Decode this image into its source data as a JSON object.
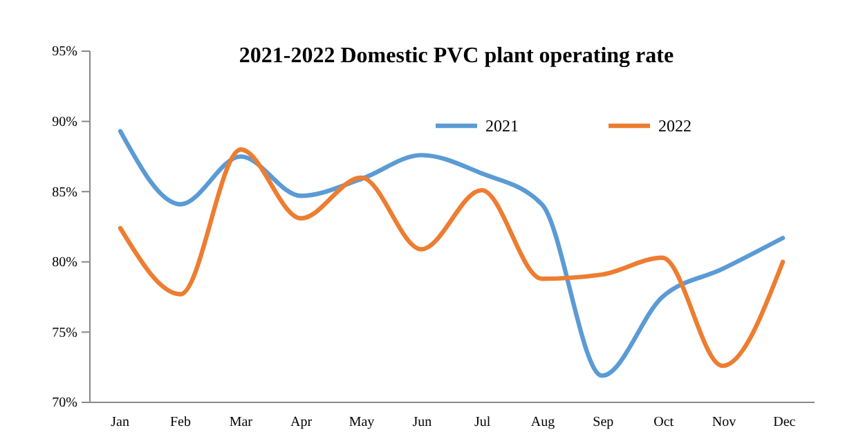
{
  "chart_data": {
    "type": "line",
    "title": "2021-2022 Domestic PVC plant operating rate",
    "categories": [
      "Jan",
      "Feb",
      "Mar",
      "Apr",
      "May",
      "Jun",
      "Jul",
      "Aug",
      "Sep",
      "Oct",
      "Nov",
      "Dec"
    ],
    "series": [
      {
        "name": "2021",
        "color": "#5b9bd5",
        "values": [
          89.3,
          84.1,
          87.5,
          84.7,
          85.9,
          87.6,
          86.3,
          84.1,
          71.9,
          77.5,
          79.5,
          81.7
        ]
      },
      {
        "name": "2022",
        "color": "#ed7d31",
        "values": [
          82.4,
          77.7,
          88.0,
          83.1,
          86.0,
          80.9,
          85.1,
          78.8,
          79.1,
          80.3,
          72.6,
          80.0
        ]
      }
    ],
    "ylim": [
      70,
      95
    ],
    "yticks": [
      {
        "value": 70,
        "label": "70%"
      },
      {
        "value": 75,
        "label": "75%"
      },
      {
        "value": 80,
        "label": "80%"
      },
      {
        "value": 85,
        "label": "85%"
      },
      {
        "value": 90,
        "label": "90%"
      },
      {
        "value": 95,
        "label": "95%"
      }
    ],
    "grid": false,
    "legend": "top right",
    "marker": "none",
    "line_style": "solid"
  }
}
